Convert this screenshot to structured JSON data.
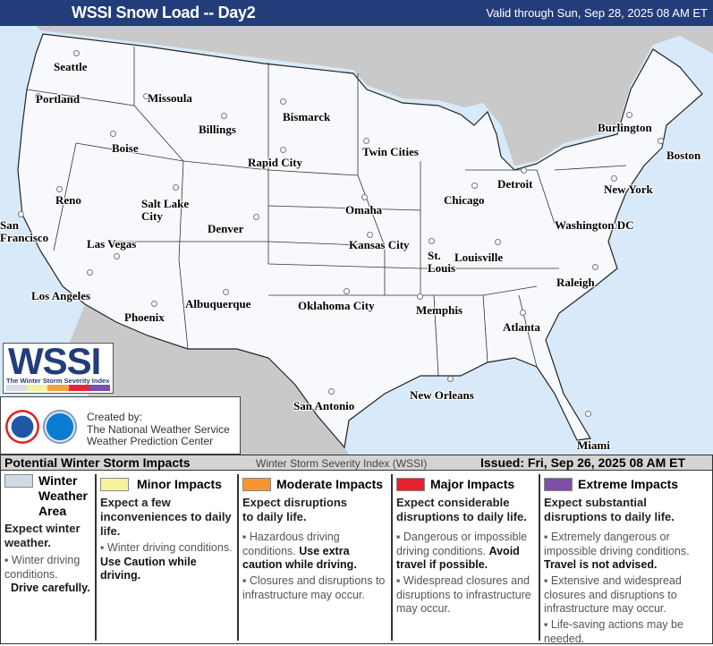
{
  "header": {
    "title": "WSSI Snow Load -- Day2",
    "valid": "Valid through Sun, Sep 28, 2025 08 AM ET"
  },
  "map": {
    "cities": [
      "Seattle",
      "Portland",
      "Missoula",
      "Billings",
      "Bismarck",
      "Boise",
      "Rapid City",
      "Twin Cities",
      "Burlington",
      "Boston",
      "Reno",
      "Salt Lake City",
      "Denver",
      "Omaha",
      "Chicago",
      "Detroit",
      "New York",
      "San Francisco",
      "Kansas City",
      "St. Louis",
      "Louisville",
      "Washington DC",
      "Las Vegas",
      "Los Angeles",
      "Albuquerque",
      "Oklahoma City",
      "Memphis",
      "Raleigh",
      "Phoenix",
      "Atlanta",
      "San Antonio",
      "New Orleans",
      "Miami"
    ],
    "colors": {
      "us_land": "#f8f9fc",
      "other_land": "#c9c9c9",
      "water": "#d8eaf9"
    }
  },
  "logo": {
    "text": "WSSI",
    "tm": "™",
    "subtitle": "The Winter Storm Severity Index",
    "colors": [
      "#d9dbe6",
      "#f3f39a",
      "#f7a23a",
      "#e8243a",
      "#7a50a8"
    ]
  },
  "credit": {
    "line1": "Created by:",
    "line2": "The National Weather Service",
    "line3": "Weather Prediction Center",
    "nws_seal": "NATIONAL WEATHER SERVICE",
    "noaa_seal": "NOAA"
  },
  "legend": {
    "title": "Potential Winter Storm Impacts",
    "index": "Winter Storm Severity Index (WSSI)",
    "issued": "Issued: Fri, Sep 26, 2025 08 AM ET",
    "categories": [
      {
        "name": "Winter Weather Area",
        "color": "#d1dbe5",
        "lead": "Expect winter weather.",
        "b1": "Winter driving conditions.",
        "b1_bold": "Drive carefully."
      },
      {
        "name": "Minor Impacts",
        "color": "#f6f3a0",
        "lead": "Expect a few inconveniences to daily life.",
        "b1": "Winter driving conditions.",
        "b1_bold": "Use Caution while driving."
      },
      {
        "name": "Moderate Impacts",
        "color": "#f7962f",
        "lead": "Expect disruptions to daily life.",
        "b1": "Hazardous driving conditions.",
        "b1_bold": "Use extra caution while driving.",
        "b2": "Closures and disruptions to infrastructure may occur."
      },
      {
        "name": "Major Impacts",
        "color": "#e5202f",
        "lead": "Expect considerable disruptions to daily life.",
        "b1": "Dangerous or impossible driving conditions.",
        "b1_bold": "Avoid travel if possible.",
        "b2": "Widespread closures and disruptions to infrastructure may occur."
      },
      {
        "name": "Extreme Impacts",
        "color": "#7c50a5",
        "lead": "Expect substantial disruptions to daily life.",
        "b1": "Extremely dangerous or impossible driving conditions.",
        "b1_bold": "Travel is not advised.",
        "b2": "Extensive and widespread closures and disruptions to infrastructure may occur.",
        "b3": "Life-saving actions may be needed."
      }
    ]
  }
}
